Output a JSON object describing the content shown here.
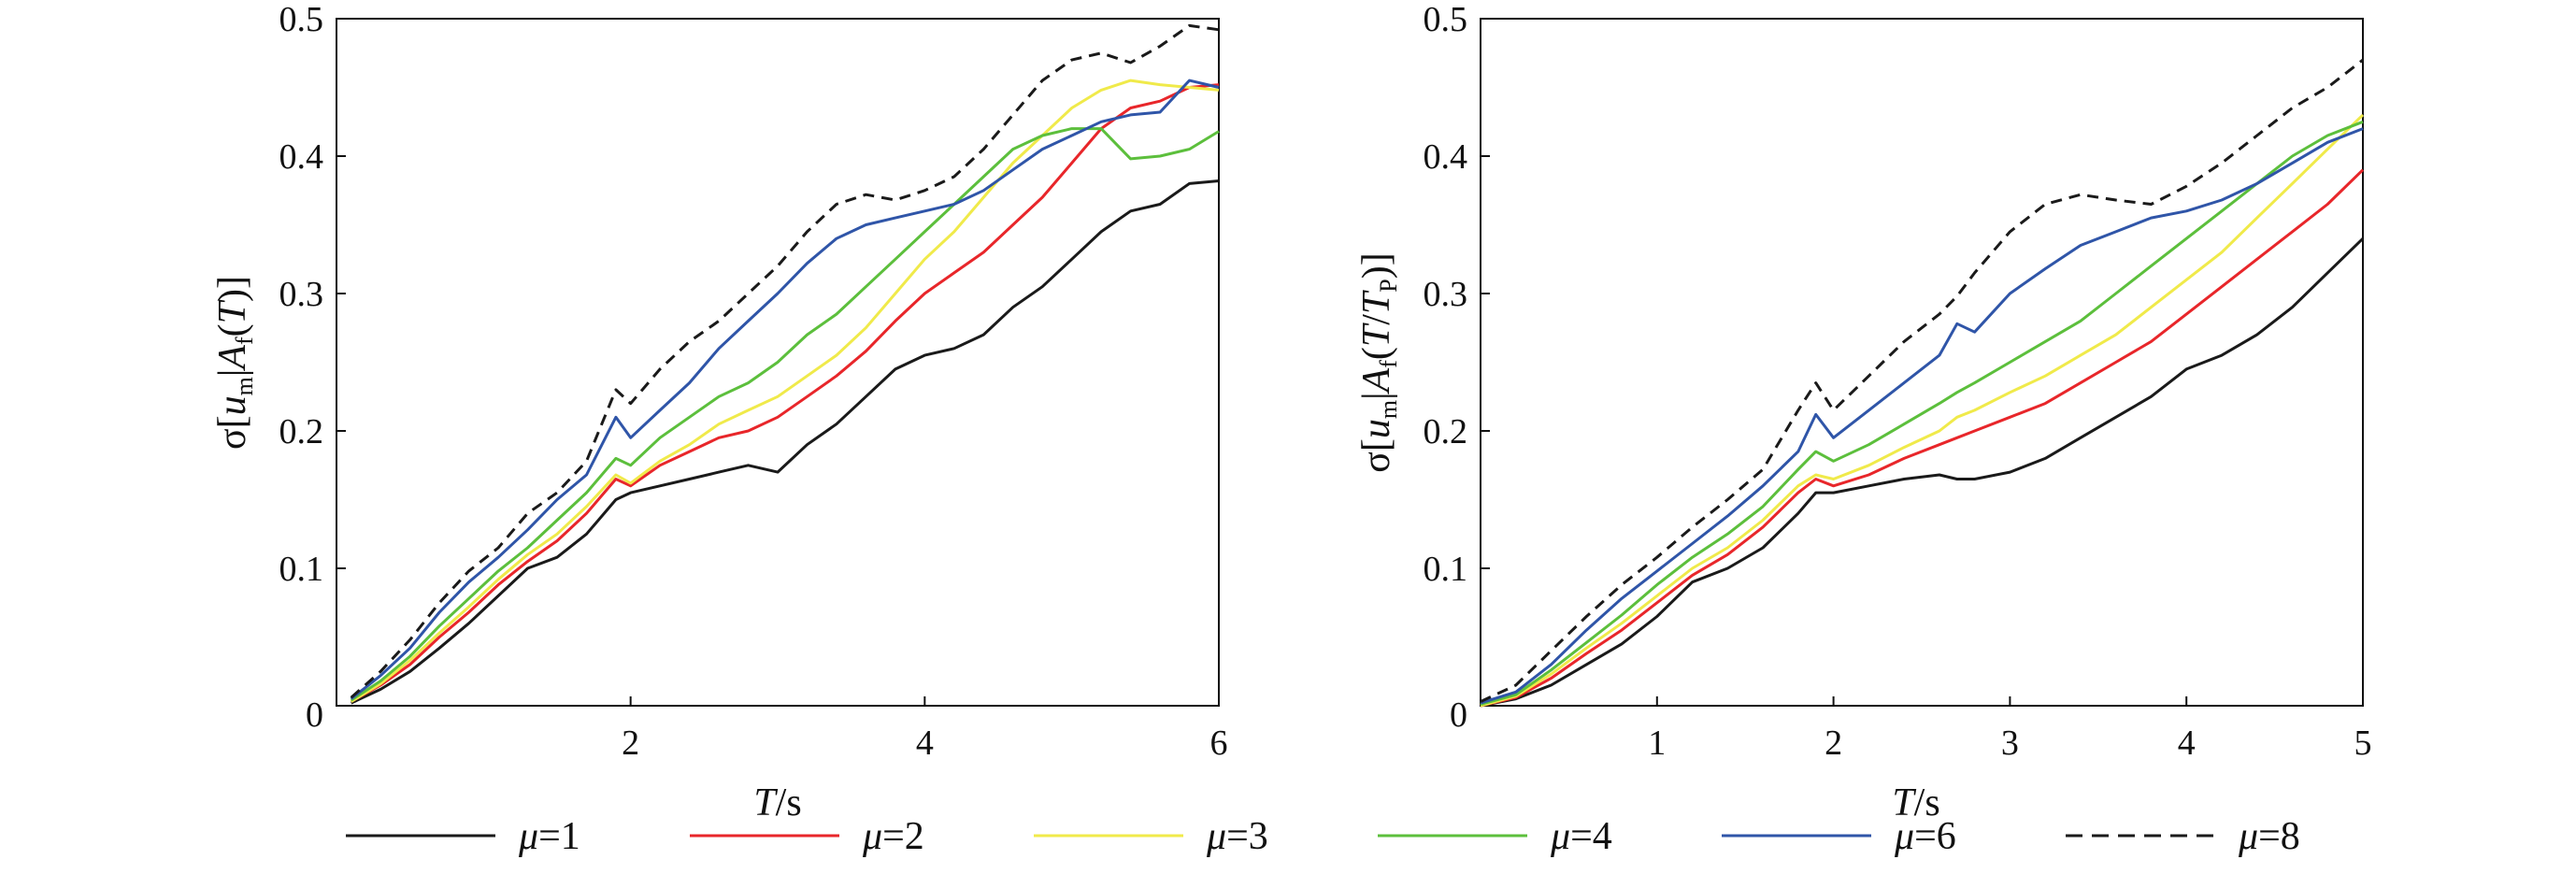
{
  "colors": {
    "mu1": "#1a1a1a",
    "mu2": "#e8262a",
    "mu3": "#f0ea4a",
    "mu4": "#5cbf3c",
    "mu6": "#2f55a8",
    "mu8": "#1a1a1a"
  },
  "legend": [
    {
      "key": "mu1",
      "symbol": "μ",
      "text": "=1",
      "dash": false
    },
    {
      "key": "mu2",
      "symbol": "μ",
      "text": "=2",
      "dash": false
    },
    {
      "key": "mu3",
      "symbol": "μ",
      "text": "=3",
      "dash": false
    },
    {
      "key": "mu4",
      "symbol": "μ",
      "text": "=4",
      "dash": false
    },
    {
      "key": "mu6",
      "symbol": "μ",
      "text": "=6",
      "dash": false
    },
    {
      "key": "mu8",
      "symbol": "μ",
      "text": "=8",
      "dash": true
    }
  ],
  "labels": {
    "left_xlabel_var": "T",
    "left_xlabel_unit": "/s",
    "left_ylabel_pre": "σ[",
    "left_ylabel_u": "u",
    "left_ylabel_m": "m",
    "left_ylabel_mid": "|",
    "left_ylabel_A": "A",
    "left_ylabel_f": "f",
    "left_ylabel_paren": "(",
    "left_ylabel_T": "T",
    "left_ylabel_end": ")]",
    "right_xlabel_var": "T",
    "right_xlabel_unit": "/s",
    "right_ylabel_pre": "σ[",
    "right_ylabel_u": "u",
    "right_ylabel_m": "m",
    "right_ylabel_mid": "|",
    "right_ylabel_A": "A",
    "right_ylabel_f": "f",
    "right_ylabel_paren": "(",
    "right_ylabel_T": "T",
    "right_ylabel_slash": "/",
    "right_ylabel_T2": "T",
    "right_ylabel_P": "P",
    "right_ylabel_end": ")]"
  },
  "chart_data": [
    {
      "type": "line",
      "xlim": [
        0,
        6
      ],
      "ylim": [
        0,
        0.5
      ],
      "xticks": [
        2,
        4,
        6
      ],
      "yticks": [
        0.1,
        0.2,
        0.3,
        0.4,
        0.5
      ],
      "origin_label": "0",
      "grid": false,
      "legend_position": "bottom",
      "x": [
        0.1,
        0.3,
        0.5,
        0.7,
        0.9,
        1.1,
        1.3,
        1.5,
        1.7,
        1.9,
        2.0,
        2.2,
        2.4,
        2.6,
        2.8,
        3.0,
        3.2,
        3.4,
        3.6,
        3.8,
        4.0,
        4.2,
        4.4,
        4.6,
        4.8,
        5.0,
        5.2,
        5.4,
        5.6,
        5.8,
        6.0
      ],
      "series": [
        {
          "key": "mu1",
          "values": [
            0.002,
            0.012,
            0.025,
            0.042,
            0.06,
            0.08,
            0.1,
            0.108,
            0.125,
            0.15,
            0.155,
            0.16,
            0.165,
            0.17,
            0.175,
            0.17,
            0.19,
            0.205,
            0.225,
            0.245,
            0.255,
            0.26,
            0.27,
            0.29,
            0.305,
            0.325,
            0.345,
            0.36,
            0.365,
            0.38,
            0.382
          ]
        },
        {
          "key": "mu2",
          "values": [
            0.003,
            0.015,
            0.03,
            0.05,
            0.068,
            0.088,
            0.105,
            0.12,
            0.14,
            0.165,
            0.16,
            0.175,
            0.185,
            0.195,
            0.2,
            0.21,
            0.225,
            0.24,
            0.258,
            0.28,
            0.3,
            0.315,
            0.33,
            0.35,
            0.37,
            0.395,
            0.42,
            0.435,
            0.44,
            0.45,
            0.452
          ]
        },
        {
          "key": "mu3",
          "values": [
            0.003,
            0.016,
            0.033,
            0.053,
            0.072,
            0.092,
            0.11,
            0.125,
            0.145,
            0.168,
            0.162,
            0.178,
            0.19,
            0.205,
            0.215,
            0.225,
            0.24,
            0.255,
            0.275,
            0.3,
            0.325,
            0.345,
            0.37,
            0.395,
            0.415,
            0.435,
            0.448,
            0.455,
            0.452,
            0.45,
            0.448
          ]
        },
        {
          "key": "mu4",
          "values": [
            0.004,
            0.018,
            0.036,
            0.058,
            0.078,
            0.098,
            0.115,
            0.135,
            0.155,
            0.18,
            0.175,
            0.195,
            0.21,
            0.225,
            0.235,
            0.25,
            0.27,
            0.285,
            0.305,
            0.325,
            0.345,
            0.365,
            0.385,
            0.405,
            0.415,
            0.42,
            0.42,
            0.398,
            0.4,
            0.405,
            0.418
          ]
        },
        {
          "key": "mu6",
          "values": [
            0.005,
            0.022,
            0.042,
            0.068,
            0.09,
            0.108,
            0.128,
            0.15,
            0.168,
            0.21,
            0.195,
            0.215,
            0.235,
            0.26,
            0.28,
            0.3,
            0.322,
            0.34,
            0.35,
            0.355,
            0.36,
            0.365,
            0.375,
            0.39,
            0.405,
            0.415,
            0.425,
            0.43,
            0.432,
            0.455,
            0.45
          ]
        },
        {
          "key": "mu8",
          "values": [
            0.006,
            0.025,
            0.048,
            0.075,
            0.098,
            0.115,
            0.14,
            0.155,
            0.178,
            0.23,
            0.22,
            0.245,
            0.265,
            0.28,
            0.3,
            0.32,
            0.345,
            0.365,
            0.372,
            0.368,
            0.375,
            0.385,
            0.405,
            0.43,
            0.455,
            0.47,
            0.475,
            0.468,
            0.48,
            0.495,
            0.492
          ]
        }
      ]
    },
    {
      "type": "line",
      "xlim": [
        0,
        5
      ],
      "ylim": [
        0,
        0.5
      ],
      "xticks": [
        1,
        2,
        3,
        4,
        5
      ],
      "yticks": [
        0.1,
        0.2,
        0.3,
        0.4,
        0.5
      ],
      "origin_label": "0",
      "grid": false,
      "legend_position": "bottom",
      "x": [
        0.0,
        0.2,
        0.4,
        0.6,
        0.8,
        1.0,
        1.2,
        1.4,
        1.6,
        1.8,
        1.9,
        2.0,
        2.2,
        2.4,
        2.6,
        2.7,
        2.8,
        3.0,
        3.2,
        3.4,
        3.6,
        3.8,
        4.0,
        4.2,
        4.4,
        4.6,
        4.8,
        5.0
      ],
      "series": [
        {
          "key": "mu1",
          "values": [
            0.0,
            0.005,
            0.015,
            0.03,
            0.045,
            0.065,
            0.09,
            0.1,
            0.115,
            0.14,
            0.155,
            0.155,
            0.16,
            0.165,
            0.168,
            0.165,
            0.165,
            0.17,
            0.18,
            0.195,
            0.21,
            0.225,
            0.245,
            0.255,
            0.27,
            0.29,
            0.315,
            0.34
          ]
        },
        {
          "key": "mu2",
          "values": [
            0.0,
            0.006,
            0.02,
            0.038,
            0.055,
            0.075,
            0.095,
            0.11,
            0.13,
            0.155,
            0.165,
            0.16,
            0.168,
            0.18,
            0.19,
            0.195,
            0.2,
            0.21,
            0.22,
            0.235,
            0.25,
            0.265,
            0.285,
            0.305,
            0.325,
            0.345,
            0.365,
            0.39
          ]
        },
        {
          "key": "mu3",
          "values": [
            0.0,
            0.007,
            0.023,
            0.042,
            0.06,
            0.08,
            0.1,
            0.115,
            0.135,
            0.16,
            0.168,
            0.165,
            0.175,
            0.188,
            0.2,
            0.21,
            0.215,
            0.228,
            0.24,
            0.255,
            0.27,
            0.29,
            0.31,
            0.33,
            0.355,
            0.38,
            0.405,
            0.43
          ]
        },
        {
          "key": "mu4",
          "values": [
            0.001,
            0.008,
            0.026,
            0.046,
            0.066,
            0.088,
            0.108,
            0.125,
            0.145,
            0.172,
            0.185,
            0.178,
            0.19,
            0.205,
            0.22,
            0.228,
            0.235,
            0.25,
            0.265,
            0.28,
            0.3,
            0.32,
            0.34,
            0.36,
            0.38,
            0.4,
            0.415,
            0.425
          ]
        },
        {
          "key": "mu6",
          "values": [
            0.002,
            0.01,
            0.03,
            0.055,
            0.078,
            0.098,
            0.118,
            0.138,
            0.16,
            0.185,
            0.212,
            0.195,
            0.215,
            0.235,
            0.255,
            0.278,
            0.272,
            0.3,
            0.318,
            0.335,
            0.345,
            0.355,
            0.36,
            0.368,
            0.38,
            0.395,
            0.41,
            0.42
          ]
        },
        {
          "key": "mu8",
          "values": [
            0.003,
            0.015,
            0.04,
            0.065,
            0.088,
            0.108,
            0.13,
            0.15,
            0.172,
            0.215,
            0.235,
            0.215,
            0.24,
            0.265,
            0.285,
            0.298,
            0.315,
            0.345,
            0.365,
            0.372,
            0.368,
            0.365,
            0.378,
            0.395,
            0.415,
            0.435,
            0.45,
            0.47
          ]
        }
      ]
    }
  ]
}
